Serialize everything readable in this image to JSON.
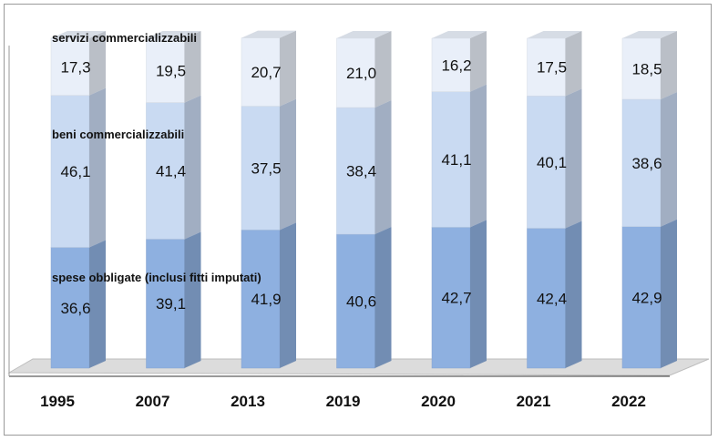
{
  "chart_data": {
    "type": "bar",
    "stacked": true,
    "three_d": true,
    "categories": [
      "1995",
      "2007",
      "2013",
      "2019",
      "2020",
      "2021",
      "2022"
    ],
    "series": [
      {
        "name": "spese obbligate (inclusi fitti imputati)",
        "values": [
          "36,6",
          "39,1",
          "41,9",
          "40,6",
          "42,7",
          "42,4",
          "42,9"
        ],
        "color": "#8eb0e0"
      },
      {
        "name": "beni commercializzabili",
        "values": [
          "46,1",
          "41,4",
          "37,5",
          "38,4",
          "41,1",
          "40,1",
          "38,6"
        ],
        "color": "#c9daf2"
      },
      {
        "name": "servizi commercializzabili",
        "values": [
          "17,3",
          "19,5",
          "20,7",
          "21,0",
          "16,2",
          "17,5",
          "18,5"
        ],
        "color": "#e9eff9"
      }
    ],
    "ylim": [
      0,
      100
    ],
    "legend": "inline labels inside bars",
    "title": "",
    "xlabel": "",
    "ylabel": ""
  }
}
